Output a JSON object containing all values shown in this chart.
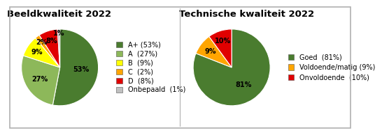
{
  "chart1_title": "Beeldkwaliteit 2022",
  "chart1_labels": [
    "A+ (53%)",
    "A  (27%)",
    "B  (9%)",
    "C  (2%)",
    "D  (8%)",
    "Onbepaald  (1%)"
  ],
  "chart1_values": [
    53,
    27,
    9,
    2,
    8,
    1
  ],
  "chart1_colors": [
    "#4a7c2f",
    "#8db85a",
    "#ffff00",
    "#ffa500",
    "#e00000",
    "#c0c0c0"
  ],
  "chart1_pct_labels": [
    "53%",
    "27%",
    "9%",
    "2%",
    "8%",
    "1%"
  ],
  "chart1_pct_radii": [
    0.55,
    0.6,
    0.72,
    0.82,
    0.72,
    0.9
  ],
  "chart2_title": "Technische kwaliteit 2022",
  "chart2_labels": [
    "Goed  (81%)",
    "Voldoende/matig (9%)",
    "Onvoldoende  (10%)"
  ],
  "chart2_values": [
    81,
    9,
    10
  ],
  "chart2_colors": [
    "#4a7c2f",
    "#ffa500",
    "#e00000"
  ],
  "chart2_pct_labels": [
    "81%",
    "9%",
    "10%"
  ],
  "chart2_pct_radii": [
    0.55,
    0.7,
    0.72
  ],
  "background_color": "#ffffff",
  "border_color": "#b0b0b0",
  "title_fontsize": 9.5,
  "legend_fontsize": 7,
  "pct_fontsize": 7
}
